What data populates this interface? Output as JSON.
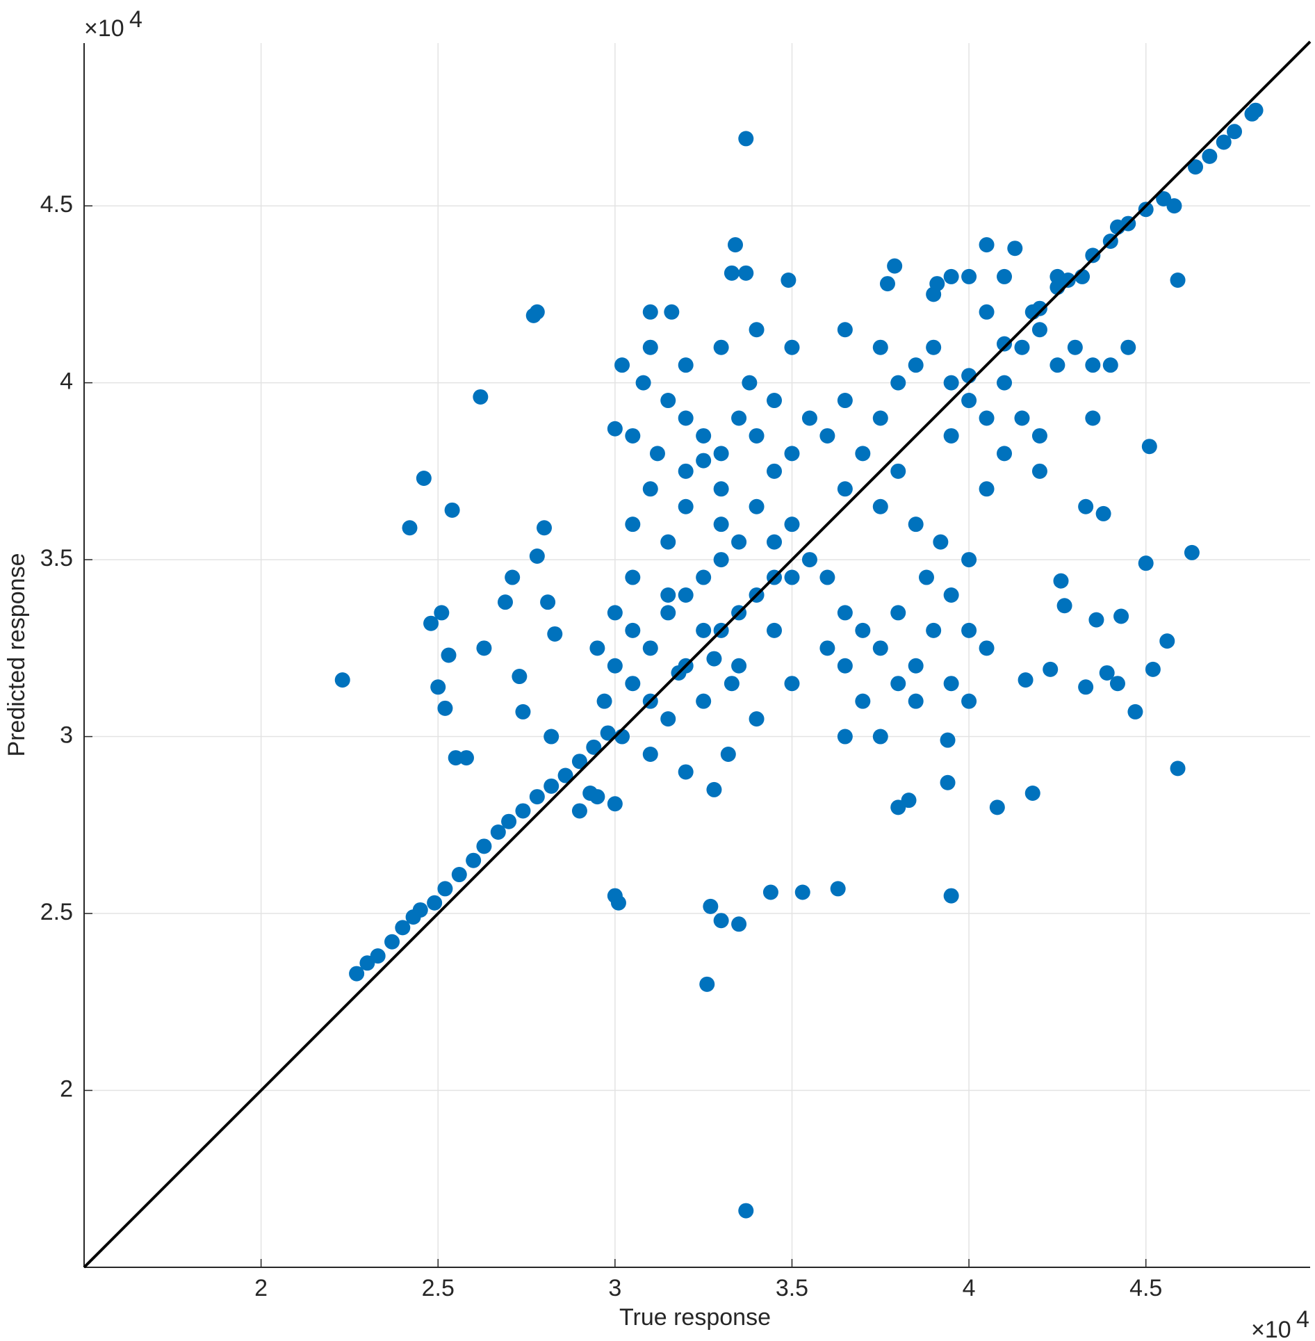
{
  "chart_data": {
    "type": "scatter",
    "xlabel": "True response",
    "ylabel": "Predicted response",
    "x_exponent_base": "×10",
    "x_exponent": "4",
    "y_exponent_base": "×10",
    "y_exponent": "4",
    "color": "#0072bd",
    "grid": true,
    "xlim": [
      15000,
      49640
    ],
    "ylim": [
      15000,
      49600
    ],
    "xticks": [
      {
        "value": 20000,
        "label": "2"
      },
      {
        "value": 25000,
        "label": "2.5"
      },
      {
        "value": 30000,
        "label": "3"
      },
      {
        "value": 35000,
        "label": "3.5"
      },
      {
        "value": 40000,
        "label": "4"
      },
      {
        "value": 45000,
        "label": "4.5"
      }
    ],
    "yticks": [
      {
        "value": 20000,
        "label": "2"
      },
      {
        "value": 25000,
        "label": "2.5"
      },
      {
        "value": 30000,
        "label": "3"
      },
      {
        "value": 35000,
        "label": "3.5"
      },
      {
        "value": 40000,
        "label": "4"
      },
      {
        "value": 45000,
        "label": "4.5"
      }
    ],
    "x": [
      33700,
      33700,
      32600,
      22300,
      26200,
      24600,
      24200,
      25400,
      27800,
      27700,
      33400,
      33300,
      33700,
      34900,
      45900,
      45100,
      46300,
      45000,
      45600,
      45200,
      44700,
      45900,
      39500,
      30000,
      30100,
      35300,
      36300,
      34400,
      33500,
      33000,
      32700,
      40800,
      41800,
      38000,
      38300,
      39400,
      39400,
      42600,
      43300,
      43800,
      43300,
      44200,
      43900,
      41600,
      42300,
      42700,
      43600,
      44300,
      37900,
      37700,
      40500,
      41300,
      31000,
      31600,
      36500,
      39100,
      30000,
      28000,
      26900,
      27100,
      27300,
      27400,
      28200,
      25800,
      25500,
      25200,
      25000,
      24800,
      25100,
      25300,
      26300,
      27800,
      28100,
      28300,
      22700,
      23000,
      23300,
      23700,
      24000,
      24300,
      24500,
      24900,
      25200,
      25600,
      26000,
      26300,
      26700,
      27000,
      27400,
      27800,
      28200,
      28600,
      29000,
      29400,
      29800,
      29000,
      29500,
      30000,
      29300,
      40000,
      41000,
      42000,
      42800,
      43500,
      44000,
      44500,
      45000,
      45500,
      46400,
      46800,
      47200,
      47500,
      48000,
      48100,
      45800,
      44200,
      43200,
      42500,
      30000,
      30500,
      31000,
      31500,
      32000,
      32500,
      33000,
      33500,
      34000,
      33000,
      32000,
      31000,
      30500,
      31500,
      32500,
      33500,
      34500,
      35000,
      35500,
      34500,
      33000,
      32000,
      31500,
      30500,
      30000,
      29500,
      29700,
      30200,
      31000,
      32000,
      32800,
      33200,
      34000,
      35000,
      36000,
      36500,
      36000,
      35000,
      34000,
      33000,
      32000,
      31000,
      30500,
      31500,
      32500,
      33500,
      34500,
      32800,
      33300,
      31800,
      30200,
      30800,
      31500,
      32000,
      32500,
      33000,
      33500,
      34000,
      34500,
      35000,
      35500,
      36000,
      31000,
      32000,
      33000,
      34000,
      35000,
      34500,
      32500,
      31200,
      30500,
      33800,
      37000,
      37500,
      38000,
      38500,
      39000,
      39500,
      40000,
      38000,
      37000,
      36500,
      37500,
      38500,
      39500,
      40500,
      40000,
      36500,
      38800,
      39200,
      40000,
      38500,
      37500,
      36500,
      37000,
      37500,
      38000,
      39000,
      39500,
      40000,
      40500,
      41000,
      41500,
      42000,
      41500,
      42000,
      40500,
      41000,
      40000,
      39500,
      39000,
      42500,
      43000,
      43500,
      44000,
      44500,
      38500,
      38000,
      41000,
      40500,
      42000,
      43500,
      39500,
      42500,
      41800,
      37500,
      36500
    ],
    "values": [
      46900,
      16600,
      23000,
      31600,
      39600,
      37300,
      35900,
      36400,
      42000,
      41900,
      43900,
      43100,
      43100,
      42900,
      42900,
      38200,
      35200,
      34900,
      32700,
      31900,
      30700,
      29100,
      25500,
      25500,
      25300,
      25600,
      25700,
      25600,
      24700,
      24800,
      25200,
      28000,
      28400,
      28000,
      28200,
      28700,
      29900,
      34400,
      36500,
      36300,
      31400,
      31500,
      31800,
      31600,
      31900,
      33700,
      33300,
      33400,
      43300,
      42800,
      43900,
      43800,
      42000,
      42000,
      41500,
      42800,
      38700,
      35900,
      33800,
      34500,
      31700,
      30700,
      30000,
      29400,
      29400,
      30800,
      31400,
      33200,
      33500,
      32300,
      32500,
      35100,
      33800,
      32900,
      23300,
      23600,
      23800,
      24200,
      24600,
      24900,
      25100,
      25300,
      25700,
      26100,
      26500,
      26900,
      27300,
      27600,
      27900,
      28300,
      28600,
      28900,
      29300,
      29700,
      30100,
      27900,
      28300,
      28100,
      28400,
      40200,
      41100,
      42100,
      42900,
      43600,
      44000,
      44500,
      44900,
      45200,
      46100,
      46400,
      46800,
      47100,
      47600,
      47700,
      45000,
      44400,
      43000,
      42700,
      32000,
      33000,
      32500,
      33500,
      34000,
      34500,
      35000,
      35500,
      34000,
      33000,
      32000,
      31000,
      31500,
      30500,
      31000,
      32000,
      33000,
      34500,
      35000,
      35500,
      36000,
      36500,
      35500,
      34500,
      33500,
      32500,
      31000,
      30000,
      29500,
      29000,
      28500,
      29500,
      30500,
      31500,
      32500,
      33500,
      34500,
      36000,
      36500,
      37000,
      37500,
      37000,
      36000,
      34000,
      33000,
      33500,
      34500,
      32200,
      31500,
      31800,
      40500,
      40000,
      39500,
      39000,
      38500,
      38000,
      39000,
      38500,
      37500,
      38000,
      39000,
      38500,
      41000,
      40500,
      41000,
      41500,
      41000,
      39500,
      37800,
      38000,
      38500,
      40000,
      33000,
      32500,
      33500,
      32000,
      33000,
      34000,
      33000,
      31500,
      31000,
      30000,
      30000,
      31000,
      31500,
      32500,
      31000,
      32000,
      34500,
      35500,
      35000,
      36000,
      36500,
      37000,
      38000,
      39000,
      37500,
      41000,
      40000,
      39500,
      39000,
      40000,
      39000,
      38500,
      41000,
      41500,
      42000,
      43000,
      43000,
      43000,
      42500,
      40500,
      41000,
      40500,
      40500,
      41000,
      40500,
      40000,
      38000,
      37000,
      37500,
      39000,
      38500,
      43000,
      42000,
      41000,
      39500
    ],
    "reference_line": {
      "x": [
        15000,
        49640
      ],
      "values": [
        15000,
        49640
      ],
      "color": "#000000"
    }
  }
}
